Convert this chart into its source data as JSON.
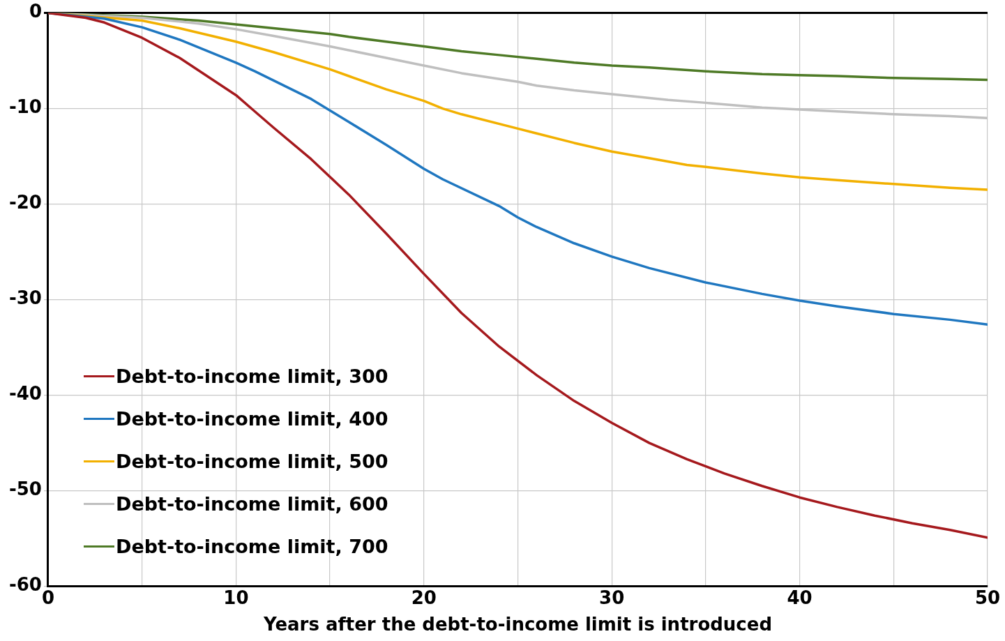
{
  "chart_data": {
    "type": "line",
    "xlabel": "Years after the debt-to-income limit is introduced",
    "xlim": [
      0,
      50
    ],
    "ylim": [
      -60,
      0
    ],
    "xticks": [
      0,
      {
        "value": 5,
        "label": null
      },
      10,
      {
        "value": 15,
        "label": null
      },
      20,
      {
        "value": 25,
        "label": null
      },
      30,
      {
        "value": 35,
        "label": null
      },
      40,
      {
        "value": 45,
        "label": null
      },
      50
    ],
    "yticks": [
      -60,
      -50,
      -40,
      -30,
      -20,
      -10,
      0
    ],
    "grid": true,
    "legend": "bottom left",
    "marker": "none",
    "line_style": "solid",
    "series": [
      {
        "name": "Debt-to-income limit, 300",
        "color": "#a5191d",
        "x": [
          0,
          2,
          3,
          5,
          7,
          10,
          11,
          12,
          14,
          16,
          18,
          20,
          22,
          24,
          26,
          28,
          30,
          32,
          34,
          36,
          38,
          40,
          42,
          44,
          46,
          48,
          50
        ],
        "values": [
          0,
          -0.5,
          -1,
          -2.6,
          -4.7,
          -8.6,
          -10.3,
          -12,
          -15.3,
          -19,
          -23.1,
          -27.3,
          -31.4,
          -34.9,
          -37.9,
          -40.6,
          -42.9,
          -45,
          -46.7,
          -48.2,
          -49.5,
          -50.7,
          -51.7,
          -52.6,
          -53.4,
          -54.1,
          -54.9
        ]
      },
      {
        "name": "Debt-to-income limit, 400",
        "color": "#1f77c0",
        "x": [
          0,
          3,
          5,
          7,
          10,
          11,
          14,
          16,
          18,
          20,
          21,
          24,
          25,
          26,
          28,
          30,
          32,
          35,
          38,
          40,
          42,
          45,
          48,
          50
        ],
        "values": [
          0,
          -0.6,
          -1.5,
          -2.8,
          -5.2,
          -6.1,
          -9,
          -11.4,
          -13.8,
          -16.3,
          -17.4,
          -20.2,
          -21.4,
          -22.4,
          -24.1,
          -25.5,
          -26.7,
          -28.2,
          -29.4,
          -30.1,
          -30.7,
          -31.5,
          -32.1,
          -32.6
        ]
      },
      {
        "name": "Debt-to-income limit, 500",
        "color": "#f2b000",
        "x": [
          0,
          5,
          7,
          10,
          12,
          15,
          16,
          18,
          20,
          21,
          22,
          25,
          28,
          30,
          32,
          34,
          35,
          38,
          40,
          42,
          45,
          48,
          50
        ],
        "values": [
          0,
          -0.8,
          -1.6,
          -3,
          -4.1,
          -5.9,
          -6.6,
          -8,
          -9.2,
          -10,
          -10.6,
          -12.1,
          -13.6,
          -14.5,
          -15.2,
          -15.9,
          -16.1,
          -16.8,
          -17.2,
          -17.5,
          -17.9,
          -18.3,
          -18.5
        ]
      },
      {
        "name": "Debt-to-income limit, 600",
        "color": "#bfbfbf",
        "x": [
          0,
          5,
          8,
          10,
          12,
          15,
          16,
          18,
          20,
          22,
          25,
          26,
          28,
          30,
          33,
          35,
          38,
          40,
          42,
          45,
          48,
          50
        ],
        "values": [
          0,
          -0.5,
          -1.1,
          -1.7,
          -2.4,
          -3.5,
          -3.9,
          -4.7,
          -5.5,
          -6.3,
          -7.2,
          -7.6,
          -8.1,
          -8.5,
          -9.1,
          -9.4,
          -9.9,
          -10.1,
          -10.3,
          -10.6,
          -10.8,
          -11
        ]
      },
      {
        "name": "Debt-to-income limit, 700",
        "color": "#4e7a26",
        "x": [
          0,
          5,
          8,
          10,
          12,
          15,
          16,
          18,
          20,
          22,
          24,
          26,
          28,
          30,
          32,
          35,
          38,
          40,
          42,
          45,
          48,
          50
        ],
        "values": [
          0,
          -0.4,
          -0.8,
          -1.2,
          -1.6,
          -2.2,
          -2.5,
          -3,
          -3.5,
          -4,
          -4.4,
          -4.8,
          -5.2,
          -5.5,
          -5.7,
          -6.1,
          -6.4,
          -6.5,
          -6.6,
          -6.8,
          -6.9,
          -7
        ]
      }
    ]
  }
}
